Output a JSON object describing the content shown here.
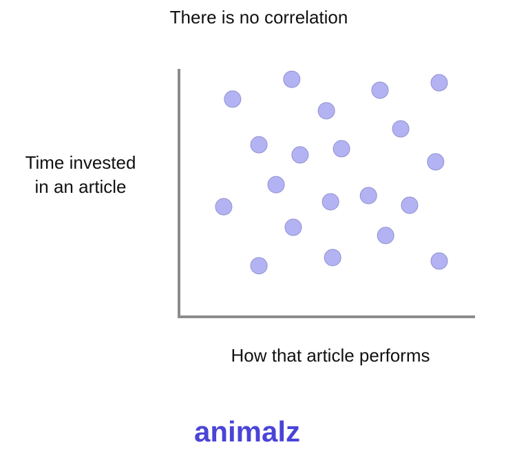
{
  "chart_data": {
    "type": "scatter",
    "title": "There is no correlation",
    "xlabel": "How that article performs",
    "ylabel_lines": [
      "Time invested",
      "in an article"
    ],
    "x": [
      18.1,
      38.1,
      67.9,
      87.9,
      49.8,
      74.9,
      27.0,
      40.9,
      54.9,
      86.7,
      32.8,
      15.1,
      51.2,
      64.0,
      77.9,
      38.6,
      69.8,
      27.0,
      51.9,
      87.9
    ],
    "values": [
      87.8,
      95.8,
      91.4,
      94.4,
      83.1,
      75.8,
      69.4,
      65.3,
      67.8,
      62.5,
      53.3,
      44.4,
      46.4,
      48.9,
      45.0,
      36.1,
      32.8,
      20.6,
      23.9,
      22.5
    ],
    "color": "#b3b3f3",
    "xlim": [
      0,
      100
    ],
    "ylim": [
      0,
      100
    ]
  },
  "logo": "animalz"
}
